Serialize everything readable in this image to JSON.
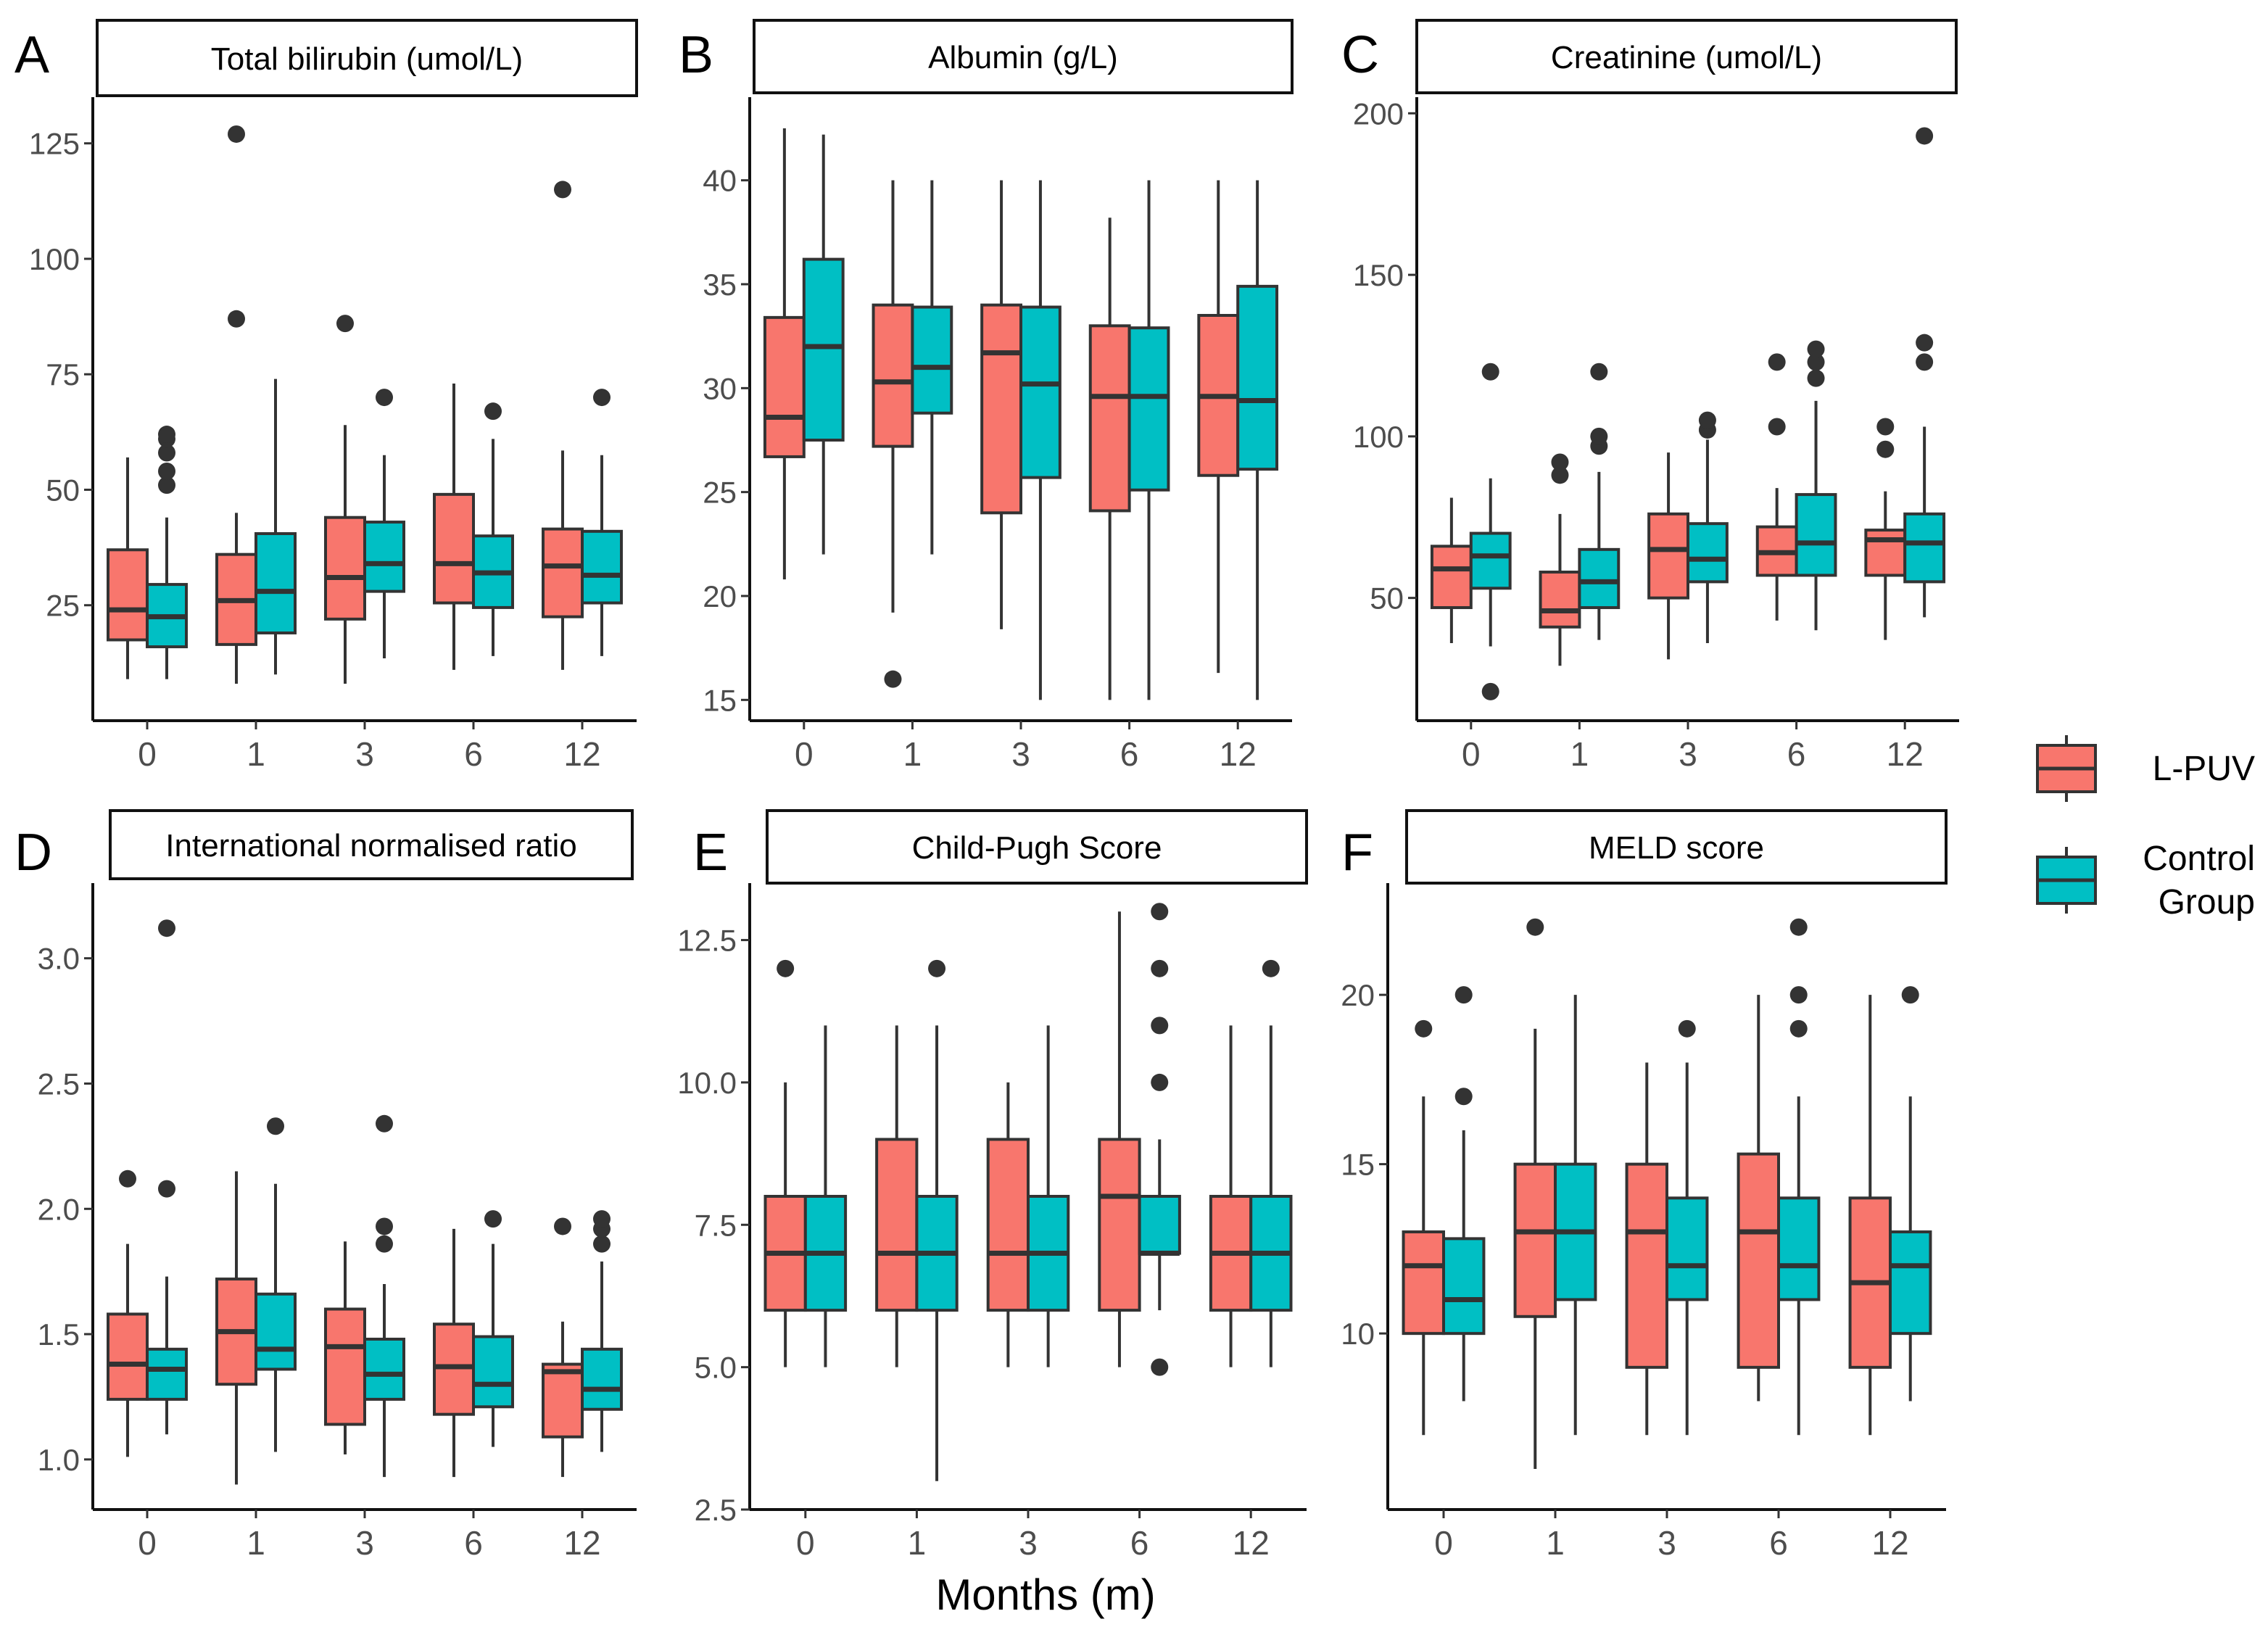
{
  "figure": {
    "xlabel": "Months (m)",
    "colors": {
      "lpuv": "#F8766D",
      "control": "#00BFC4",
      "ink": "#333333"
    },
    "legend": {
      "items": [
        {
          "label_lines": [
            "L-PUV"
          ],
          "color": "#F8766D"
        },
        {
          "label_lines": [
            "Control",
            "Group"
          ],
          "color": "#00BFC4"
        }
      ]
    }
  },
  "chart_data": [
    {
      "type": "boxplot",
      "letter": "A",
      "title": "Total bilirubin (umol/L)",
      "categories": [
        "0",
        "1",
        "3",
        "6",
        "12"
      ],
      "ylim": [
        0,
        135
      ],
      "yticks": [
        25,
        50,
        75,
        100,
        125
      ],
      "ytick_labels": [
        "25",
        "50",
        "75",
        "100",
        "125"
      ],
      "series": [
        {
          "name": "L-PUV",
          "boxes": [
            {
              "min": 9,
              "q1": 17.5,
              "median": 24,
              "q3": 37,
              "max": 57,
              "outliers": []
            },
            {
              "min": 8,
              "q1": 16.5,
              "median": 26,
              "q3": 36,
              "max": 45,
              "outliers": [
                87,
                127
              ]
            },
            {
              "min": 8,
              "q1": 22,
              "median": 31,
              "q3": 44,
              "max": 64,
              "outliers": [
                86
              ]
            },
            {
              "min": 11,
              "q1": 25.5,
              "median": 34,
              "q3": 49,
              "max": 73,
              "outliers": []
            },
            {
              "min": 11,
              "q1": 22.5,
              "median": 33.5,
              "q3": 41.5,
              "max": 58.5,
              "outliers": [
                115
              ]
            }
          ]
        },
        {
          "name": "Control Group",
          "boxes": [
            {
              "min": 9,
              "q1": 16,
              "median": 22.5,
              "q3": 29.5,
              "max": 44,
              "outliers": [
                51,
                54,
                58,
                61,
                62
              ]
            },
            {
              "min": 10,
              "q1": 19,
              "median": 28,
              "q3": 40.5,
              "max": 74,
              "outliers": []
            },
            {
              "min": 13.5,
              "q1": 28,
              "median": 34,
              "q3": 43,
              "max": 57.5,
              "outliers": [
                70
              ]
            },
            {
              "min": 14,
              "q1": 24.5,
              "median": 32,
              "q3": 40,
              "max": 61,
              "outliers": [
                67
              ]
            },
            {
              "min": 14,
              "q1": 25.5,
              "median": 31.5,
              "q3": 41,
              "max": 57.5,
              "outliers": [
                70
              ]
            }
          ]
        }
      ]
    },
    {
      "type": "boxplot",
      "letter": "B",
      "title": "Albumin (g/L)",
      "categories": [
        "0",
        "1",
        "3",
        "6",
        "12"
      ],
      "ylim": [
        14,
        44
      ],
      "yticks": [
        15,
        20,
        25,
        30,
        35,
        40
      ],
      "ytick_labels": [
        "15",
        "20",
        "25",
        "30",
        "35",
        "40"
      ],
      "series": [
        {
          "name": "L-PUV",
          "boxes": [
            {
              "min": 20.8,
              "q1": 26.7,
              "median": 28.6,
              "q3": 33.4,
              "max": 42.5,
              "outliers": []
            },
            {
              "min": 19.2,
              "q1": 27.2,
              "median": 30.3,
              "q3": 34,
              "max": 40,
              "outliers": [
                16
              ]
            },
            {
              "min": 18.4,
              "q1": 24,
              "median": 31.7,
              "q3": 34,
              "max": 40,
              "outliers": []
            },
            {
              "min": 15,
              "q1": 24.1,
              "median": 29.6,
              "q3": 33,
              "max": 38.2,
              "outliers": []
            },
            {
              "min": 16.3,
              "q1": 25.8,
              "median": 29.6,
              "q3": 33.5,
              "max": 40,
              "outliers": []
            }
          ]
        },
        {
          "name": "Control Group",
          "boxes": [
            {
              "min": 22,
              "q1": 27.5,
              "median": 32,
              "q3": 36.2,
              "max": 42.2,
              "outliers": []
            },
            {
              "min": 22,
              "q1": 28.8,
              "median": 31,
              "q3": 33.9,
              "max": 40,
              "outliers": []
            },
            {
              "min": 15,
              "q1": 25.7,
              "median": 30.2,
              "q3": 33.9,
              "max": 40,
              "outliers": []
            },
            {
              "min": 15,
              "q1": 25.1,
              "median": 29.6,
              "q3": 32.9,
              "max": 40,
              "outliers": []
            },
            {
              "min": 15,
              "q1": 26.1,
              "median": 29.4,
              "q3": 34.9,
              "max": 40,
              "outliers": []
            }
          ]
        }
      ]
    },
    {
      "type": "boxplot",
      "letter": "C",
      "title": "Creatinine (umol/L)",
      "categories": [
        "0",
        "1",
        "3",
        "6",
        "12"
      ],
      "ylim": [
        12,
        205
      ],
      "yticks": [
        50,
        100,
        150,
        200
      ],
      "ytick_labels": [
        "50",
        "100",
        "150",
        "200"
      ],
      "series": [
        {
          "name": "L-PUV",
          "boxes": [
            {
              "min": 36,
              "q1": 47,
              "median": 59,
              "q3": 66,
              "max": 81,
              "outliers": []
            },
            {
              "min": 29,
              "q1": 41,
              "median": 46,
              "q3": 58,
              "max": 76,
              "outliers": [
                88,
                92
              ]
            },
            {
              "min": 31,
              "q1": 50,
              "median": 65,
              "q3": 76,
              "max": 95,
              "outliers": []
            },
            {
              "min": 43,
              "q1": 57,
              "median": 64,
              "q3": 72,
              "max": 84,
              "outliers": [
                103,
                123
              ]
            },
            {
              "min": 37,
              "q1": 57,
              "median": 68,
              "q3": 71,
              "max": 83,
              "outliers": [
                96,
                103
              ]
            }
          ]
        },
        {
          "name": "Control Group",
          "boxes": [
            {
              "min": 35,
              "q1": 53,
              "median": 63,
              "q3": 70,
              "max": 87,
              "outliers": [
                21,
                120
              ]
            },
            {
              "min": 37,
              "q1": 47,
              "median": 55,
              "q3": 65,
              "max": 89,
              "outliers": [
                97,
                100,
                120
              ]
            },
            {
              "min": 36,
              "q1": 55,
              "median": 62,
              "q3": 73,
              "max": 99,
              "outliers": [
                102,
                105
              ]
            },
            {
              "min": 40,
              "q1": 57,
              "median": 67,
              "q3": 82,
              "max": 111,
              "outliers": [
                118,
                123,
                127
              ]
            },
            {
              "min": 44,
              "q1": 55,
              "median": 67,
              "q3": 76,
              "max": 103,
              "outliers": [
                123,
                129,
                193
              ]
            }
          ]
        }
      ]
    },
    {
      "type": "boxplot",
      "letter": "D",
      "title": "International normalised ratio",
      "categories": [
        "0",
        "1",
        "3",
        "6",
        "12"
      ],
      "ylim": [
        0.8,
        3.3
      ],
      "yticks": [
        1.0,
        1.5,
        2.0,
        2.5,
        3.0
      ],
      "ytick_labels": [
        "1.0",
        "1.5",
        "2.0",
        "2.5",
        "3.0"
      ],
      "series": [
        {
          "name": "L-PUV",
          "boxes": [
            {
              "min": 1.01,
              "q1": 1.24,
              "median": 1.38,
              "q3": 1.58,
              "max": 1.86,
              "outliers": [
                2.12
              ]
            },
            {
              "min": 0.9,
              "q1": 1.3,
              "median": 1.51,
              "q3": 1.72,
              "max": 2.15,
              "outliers": []
            },
            {
              "min": 1.02,
              "q1": 1.14,
              "median": 1.45,
              "q3": 1.6,
              "max": 1.87,
              "outliers": []
            },
            {
              "min": 0.93,
              "q1": 1.18,
              "median": 1.37,
              "q3": 1.54,
              "max": 1.92,
              "outliers": []
            },
            {
              "min": 0.93,
              "q1": 1.09,
              "median": 1.35,
              "q3": 1.38,
              "max": 1.55,
              "outliers": [
                1.93
              ]
            }
          ]
        },
        {
          "name": "Control Group",
          "boxes": [
            {
              "min": 1.1,
              "q1": 1.24,
              "median": 1.36,
              "q3": 1.44,
              "max": 1.73,
              "outliers": [
                2.08,
                3.12
              ]
            },
            {
              "min": 1.03,
              "q1": 1.36,
              "median": 1.44,
              "q3": 1.66,
              "max": 2.1,
              "outliers": [
                2.33
              ]
            },
            {
              "min": 0.93,
              "q1": 1.24,
              "median": 1.34,
              "q3": 1.48,
              "max": 1.7,
              "outliers": [
                1.86,
                1.93,
                2.34
              ]
            },
            {
              "min": 1.05,
              "q1": 1.21,
              "median": 1.3,
              "q3": 1.49,
              "max": 1.86,
              "outliers": [
                1.96
              ]
            },
            {
              "min": 1.03,
              "q1": 1.2,
              "median": 1.28,
              "q3": 1.44,
              "max": 1.79,
              "outliers": [
                1.86,
                1.92,
                1.96
              ]
            }
          ]
        }
      ]
    },
    {
      "type": "boxplot",
      "letter": "E",
      "title": "Child-Pugh Score",
      "categories": [
        "0",
        "1",
        "3",
        "6",
        "12"
      ],
      "ylim": [
        2.5,
        13.5
      ],
      "yticks": [
        2.5,
        5.0,
        7.5,
        10.0,
        12.5
      ],
      "ytick_labels": [
        "2.5",
        "5.0",
        "7.5",
        "10.0",
        "12.5"
      ],
      "series": [
        {
          "name": "L-PUV",
          "boxes": [
            {
              "min": 5,
              "q1": 6,
              "median": 7,
              "q3": 8,
              "max": 10,
              "outliers": [
                12
              ]
            },
            {
              "min": 5,
              "q1": 6,
              "median": 7,
              "q3": 9,
              "max": 11,
              "outliers": []
            },
            {
              "min": 5,
              "q1": 6,
              "median": 7,
              "q3": 9,
              "max": 10,
              "outliers": []
            },
            {
              "min": 5,
              "q1": 6,
              "median": 8,
              "q3": 9,
              "max": 13,
              "outliers": []
            },
            {
              "min": 5,
              "q1": 6,
              "median": 7,
              "q3": 8,
              "max": 11,
              "outliers": []
            }
          ]
        },
        {
          "name": "Control Group",
          "boxes": [
            {
              "min": 5,
              "q1": 6,
              "median": 7,
              "q3": 8,
              "max": 11,
              "outliers": []
            },
            {
              "min": 3,
              "q1": 6,
              "median": 7,
              "q3": 8,
              "max": 11,
              "outliers": [
                12
              ]
            },
            {
              "min": 5,
              "q1": 6,
              "median": 7,
              "q3": 8,
              "max": 11,
              "outliers": []
            },
            {
              "min": 6,
              "q1": 7,
              "median": 7,
              "q3": 8,
              "max": 9,
              "outliers": [
                5,
                10,
                11,
                12,
                13
              ]
            },
            {
              "min": 5,
              "q1": 6,
              "median": 7,
              "q3": 8,
              "max": 11,
              "outliers": [
                12
              ]
            }
          ]
        }
      ]
    },
    {
      "type": "boxplot",
      "letter": "F",
      "title": "MELD score",
      "categories": [
        "0",
        "1",
        "3",
        "6",
        "12"
      ],
      "ylim": [
        4.8,
        23.3
      ],
      "yticks": [
        10,
        15,
        20
      ],
      "ytick_labels": [
        "10",
        "15",
        "20"
      ],
      "series": [
        {
          "name": "L-PUV",
          "boxes": [
            {
              "min": 7,
              "q1": 10,
              "median": 12,
              "q3": 13,
              "max": 17,
              "outliers": [
                19
              ]
            },
            {
              "min": 6,
              "q1": 10.5,
              "median": 13,
              "q3": 15,
              "max": 19,
              "outliers": [
                22
              ]
            },
            {
              "min": 7,
              "q1": 9,
              "median": 13,
              "q3": 15,
              "max": 18,
              "outliers": []
            },
            {
              "min": 8,
              "q1": 9,
              "median": 13,
              "q3": 15.3,
              "max": 20,
              "outliers": []
            },
            {
              "min": 7,
              "q1": 9,
              "median": 11.5,
              "q3": 14,
              "max": 20,
              "outliers": []
            }
          ]
        },
        {
          "name": "Control Group",
          "boxes": [
            {
              "min": 8,
              "q1": 10,
              "median": 11,
              "q3": 12.8,
              "max": 16,
              "outliers": [
                17,
                20
              ]
            },
            {
              "min": 7,
              "q1": 11,
              "median": 13,
              "q3": 15,
              "max": 20,
              "outliers": []
            },
            {
              "min": 7,
              "q1": 11,
              "median": 12,
              "q3": 14,
              "max": 18,
              "outliers": [
                19
              ]
            },
            {
              "min": 7,
              "q1": 11,
              "median": 12,
              "q3": 14,
              "max": 17,
              "outliers": [
                19,
                20,
                22
              ]
            },
            {
              "min": 8,
              "q1": 10,
              "median": 12,
              "q3": 13,
              "max": 17,
              "outliers": [
                20
              ]
            }
          ]
        }
      ]
    }
  ]
}
